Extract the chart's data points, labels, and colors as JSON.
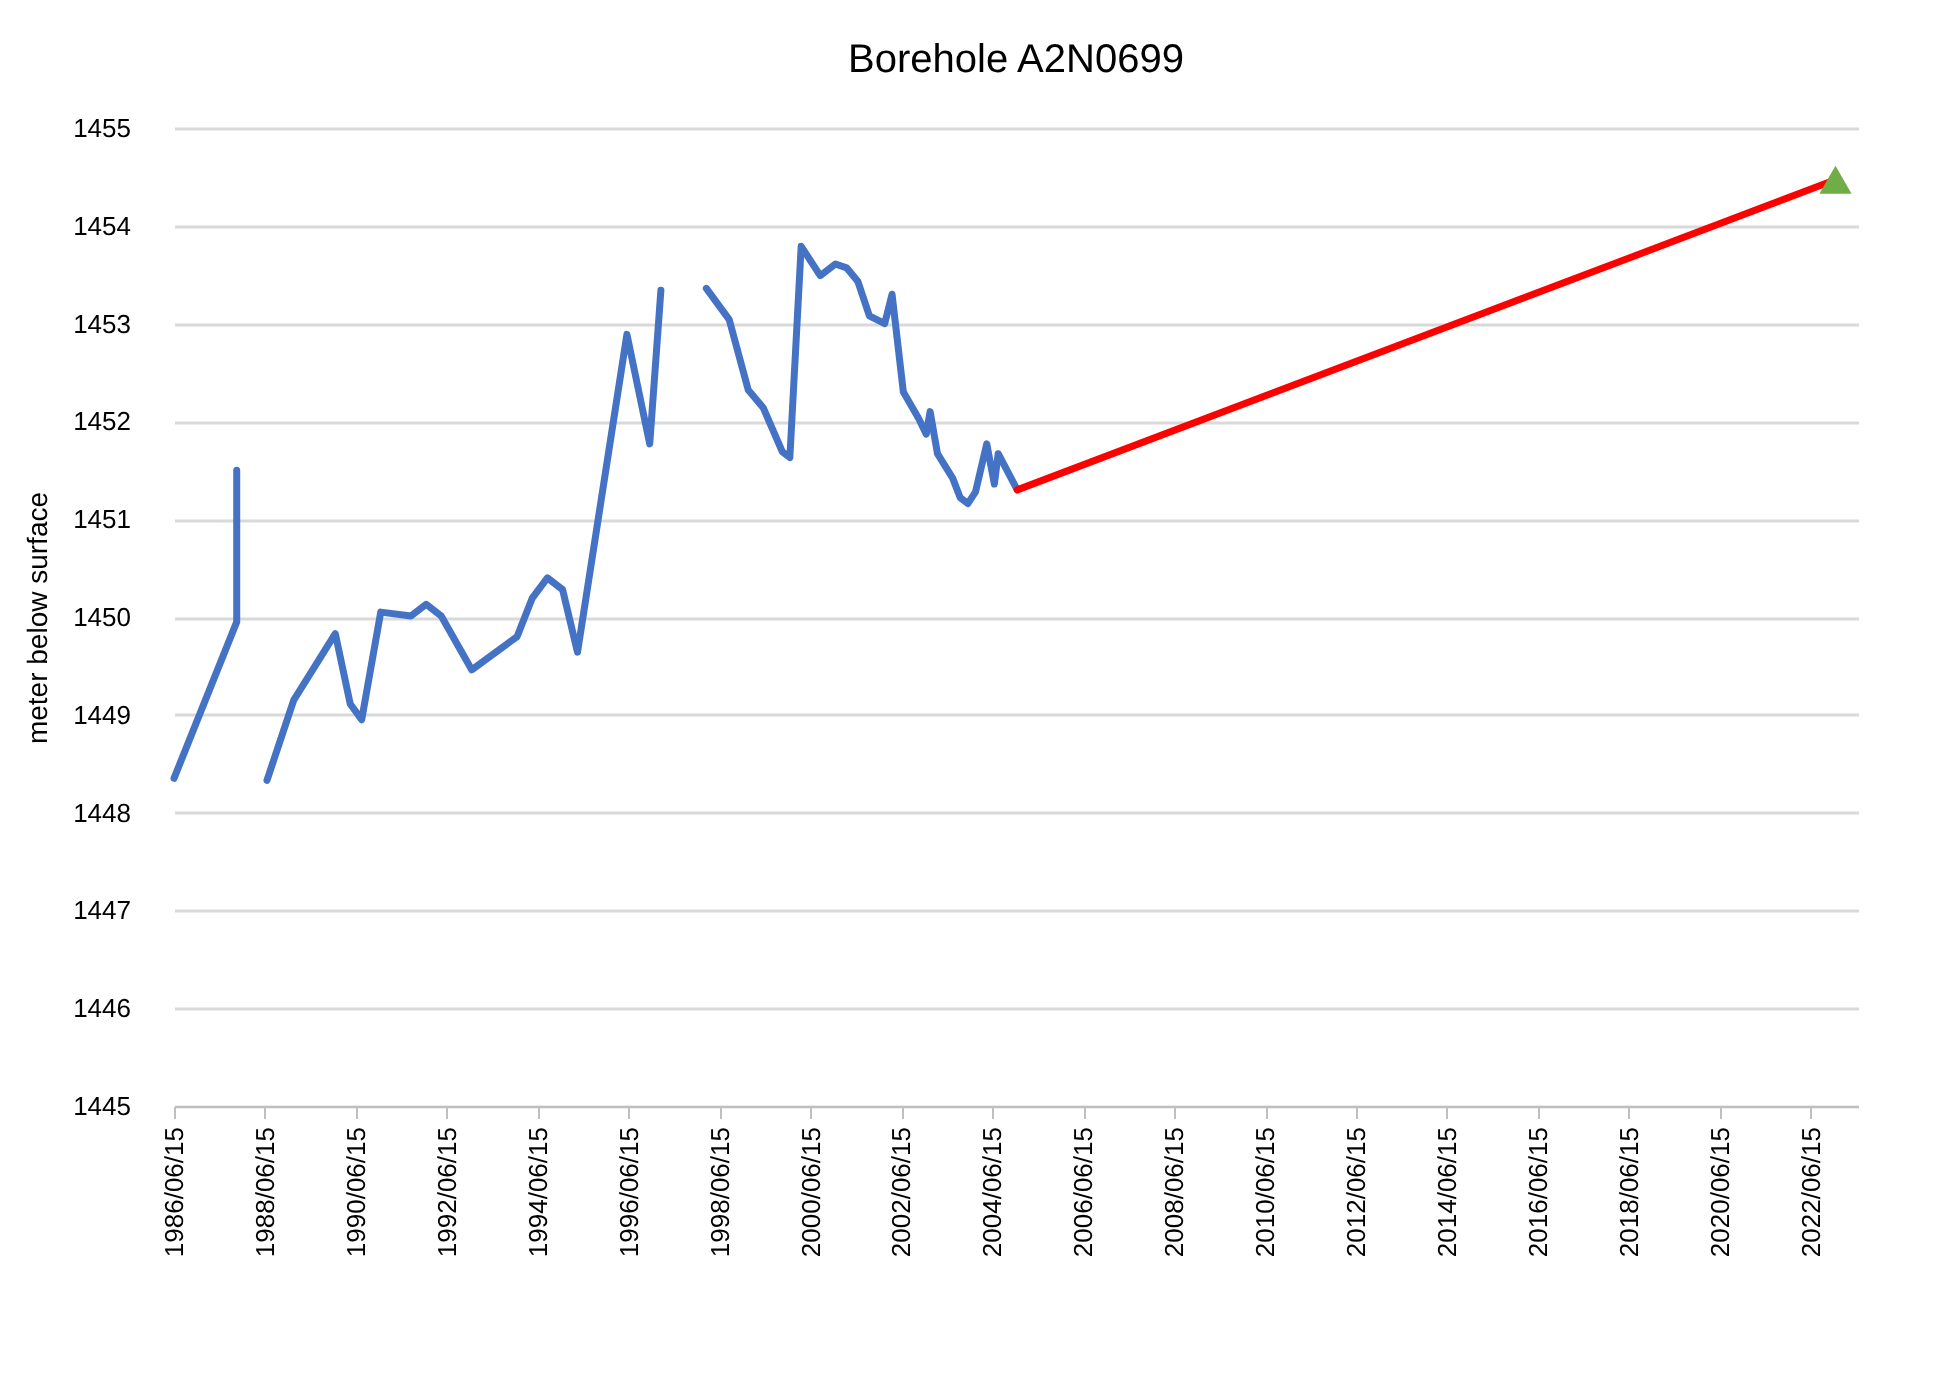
{
  "chart_data": {
    "type": "line",
    "title": "Borehole A2N0699",
    "ylabel": "meter below surface",
    "xlim": [
      "1986-06-15",
      "2023-07-01"
    ],
    "ylim": [
      1445,
      1455
    ],
    "yticks": [
      1445,
      1446,
      1447,
      1448,
      1449,
      1450,
      1451,
      1452,
      1453,
      1454,
      1455
    ],
    "xticks": [
      {
        "value": "1986-06-15",
        "label": "1986/06/15"
      },
      {
        "value": "1988-06-15",
        "label": "1988/06/15"
      },
      {
        "value": "1990-06-15",
        "label": "1990/06/15"
      },
      {
        "value": "1992-06-15",
        "label": "1992/06/15"
      },
      {
        "value": "1994-06-15",
        "label": "1994/06/15"
      },
      {
        "value": "1996-06-15",
        "label": "1996/06/15"
      },
      {
        "value": "1998-06-15",
        "label": "1998/06/15"
      },
      {
        "value": "2000-06-15",
        "label": "2000/06/15"
      },
      {
        "value": "2002-06-15",
        "label": "2002/06/15"
      },
      {
        "value": "2004-06-15",
        "label": "2004/06/15"
      },
      {
        "value": "2006-06-15",
        "label": "2006/06/15"
      },
      {
        "value": "2008-06-15",
        "label": "2008/06/15"
      },
      {
        "value": "2010-06-15",
        "label": "2010/06/15"
      },
      {
        "value": "2012-06-15",
        "label": "2012/06/15"
      },
      {
        "value": "2014-06-15",
        "label": "2014/06/15"
      },
      {
        "value": "2016-06-15",
        "label": "2016/06/15"
      },
      {
        "value": "2018-06-15",
        "label": "2018/06/15"
      },
      {
        "value": "2020-06-15",
        "label": "2020/06/15"
      },
      {
        "value": "2022-06-15",
        "label": "2022/06/15"
      }
    ],
    "grid": "y",
    "series": [
      {
        "color": "#4472c4",
        "x": [
          "1986-06-15",
          "1987-11",
          "1987-11",
          "1987-11",
          "1988-03",
          "1988-07",
          "1989-02",
          "1990-01",
          "1990-05",
          "1990-08",
          "1991-01",
          "1991-09",
          "1992-01",
          "1992-05",
          "1993-01",
          "1994-01",
          "1994-05",
          "1994-09",
          "1995-01",
          "1995-05",
          "1996-06",
          "1996-12",
          "1997-03",
          "1997-09",
          "1998-03",
          "1998-09",
          "1999-02",
          "1999-06",
          "1999-11",
          "2000-01",
          "2000-04",
          "2000-09",
          "2001-01",
          "2001-04",
          "2001-07",
          "2001-10",
          "2002-02",
          "2002-04",
          "2002-07",
          "2002-11",
          "2003-01",
          "2003-02",
          "2003-04",
          "2003-08",
          "2003-10",
          "2003-12",
          "2004-02",
          "2004-05",
          "2004-07",
          "2004-08",
          "2005-01"
        ],
        "values": [
          1448.35,
          1449.95,
          1450.64,
          1451.5,
          null,
          1448.33,
          1449.15,
          1449.83,
          1449.11,
          1448.95,
          1450.05,
          1450.01,
          1450.13,
          1450.01,
          1449.46,
          1449.8,
          1450.19,
          1450.4,
          1450.28,
          1449.64,
          1452.89,
          1451.77,
          1453.34,
          null,
          1453.36,
          1453.04,
          1452.32,
          1452.14,
          1451.69,
          1451.63,
          1453.79,
          1453.49,
          1453.61,
          1453.57,
          1453.43,
          1453.08,
          1453.0,
          1453.3,
          1452.3,
          1452.03,
          1451.87,
          1452.1,
          1451.67,
          1451.42,
          1451.22,
          1451.16,
          1451.28,
          1451.77,
          1451.36,
          1451.67,
          1451.3
        ]
      },
      {
        "color": "#ff0000",
        "x": [
          "2005-01",
          "2023-01"
        ],
        "values": [
          1451.3,
          1454.47
        ]
      },
      {
        "type": "scatter",
        "marker": "triangle",
        "color": "#70ad47",
        "x": [
          "2023-01"
        ],
        "values": [
          1454.47
        ]
      }
    ]
  }
}
